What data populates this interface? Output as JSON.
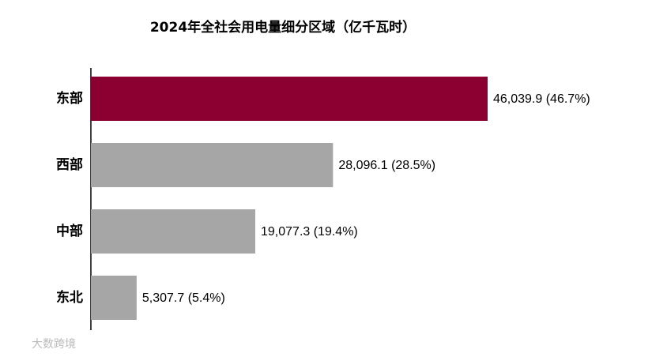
{
  "chart_data": {
    "type": "hbar",
    "title": "2024年全社会用电量细分区域（亿千瓦时）",
    "categories": [
      "东部",
      "西部",
      "中部",
      "东北"
    ],
    "values": [
      46039.9,
      28096.1,
      19077.3,
      5307.7
    ],
    "value_labels": [
      "46,039.9 (46.7%)",
      "28,096.1 (28.5%)",
      "19,077.3 (19.4%)",
      "5,307.7 (5.4%)"
    ],
    "colors": [
      "#8b0030",
      "#a6a6a6",
      "#a6a6a6",
      "#a6a6a6"
    ]
  },
  "watermark": "大数跨境"
}
